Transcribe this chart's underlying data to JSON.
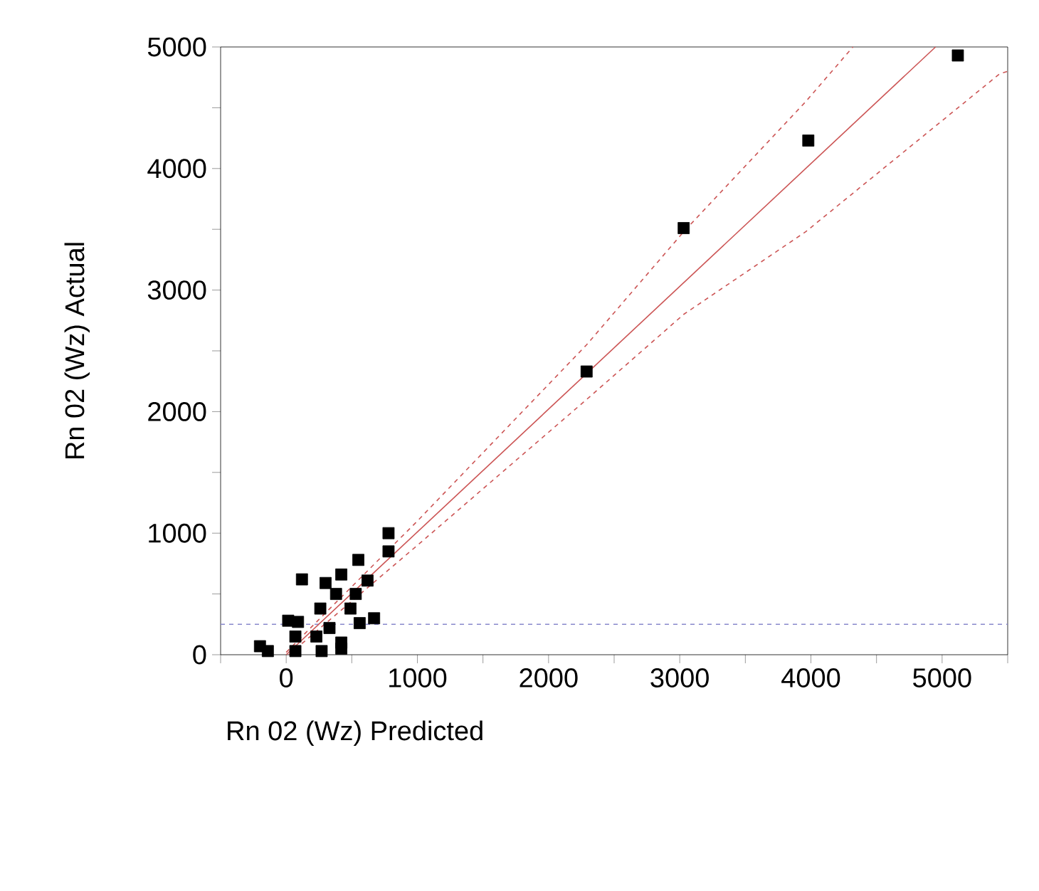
{
  "chart_data": {
    "type": "scatter",
    "xlabel": "Rn 02 (Wz) Predicted",
    "ylabel": "Rn 02 (Wz) Actual",
    "xlim": [
      -500,
      5500
    ],
    "ylim": [
      0,
      5000
    ],
    "xticks": [
      {
        "value": -500,
        "label": null
      },
      0,
      {
        "value": 500,
        "label": null
      },
      1000,
      {
        "value": 1500,
        "label": null
      },
      2000,
      {
        "value": 2500,
        "label": null
      },
      3000,
      {
        "value": 3500,
        "label": null
      },
      4000,
      {
        "value": 4500,
        "label": null
      },
      5000,
      {
        "value": 5500,
        "label": null
      }
    ],
    "yticks": [
      0,
      {
        "value": 500,
        "label": null
      },
      1000,
      {
        "value": 1500,
        "label": null
      },
      2000,
      {
        "value": 2500,
        "label": null
      },
      3000,
      {
        "value": 3500,
        "label": null
      },
      4000,
      {
        "value": 4500,
        "label": null
      },
      5000
    ],
    "grid": false,
    "marker": "square",
    "ref_lines": [
      {
        "axis": "y",
        "value": 250,
        "color": "#8888cc",
        "line_style": "dashed"
      }
    ],
    "series": [
      {
        "color": "#000000",
        "x": [
          5120,
          3980,
          3030,
          2290,
          780,
          780,
          550,
          120,
          420,
          300,
          620,
          530,
          380,
          660,
          670,
          260,
          15,
          90,
          -200,
          -140,
          420,
          420,
          230,
          70,
          330,
          490,
          270,
          70,
          560
        ],
        "values": [
          4930,
          4230,
          3510,
          2330,
          1000,
          850,
          780,
          620,
          660,
          590,
          610,
          500,
          500,
          null,
          300,
          380,
          280,
          270,
          70,
          30,
          100,
          50,
          150,
          150,
          220,
          380,
          30,
          30,
          260
        ]
      },
      {
        "type": "line",
        "color": "#cc5555",
        "line_style": "solid",
        "marker": "none",
        "x": [
          0,
          4950
        ],
        "values": [
          0,
          5000
        ]
      },
      {
        "type": "line",
        "color": "#cc5555",
        "line_style": "dashed",
        "marker": "none",
        "x": [
          0,
          1000,
          2290,
          3030,
          3960,
          4320
        ],
        "values": [
          20,
          1100,
          2550,
          3480,
          4550,
          5000
        ]
      },
      {
        "type": "line",
        "color": "#cc5555",
        "line_style": "dashed",
        "marker": "none",
        "x": [
          20,
          1000,
          2290,
          3030,
          3960,
          5440,
          5500
        ],
        "values": [
          0,
          900,
          2100,
          2800,
          3480,
          4780,
          4800
        ]
      }
    ]
  }
}
